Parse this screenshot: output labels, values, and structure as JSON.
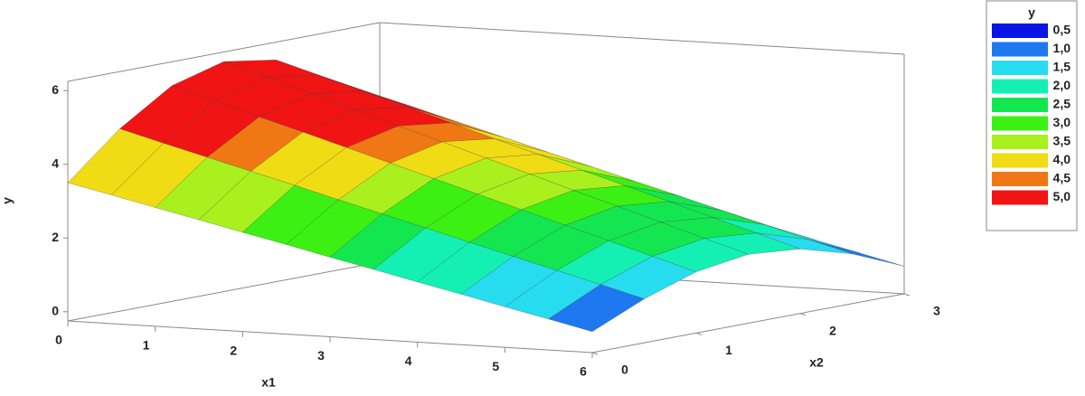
{
  "chart_data": {
    "type": "surface",
    "x_label": "x1",
    "x2_label": "x2",
    "y_label": "y",
    "x1": [
      0,
      0.5,
      1,
      1.5,
      2,
      2.5,
      3,
      3.5,
      4,
      4.5,
      5,
      5.5,
      6
    ],
    "x2": [
      0,
      0.5,
      1,
      1.5,
      2,
      2.5,
      3
    ],
    "z": [
      [
        3.5,
        4.7,
        5.6,
        5.99,
        5.77,
        5.0,
        3.85
      ],
      [
        3.24,
        4.38,
        5.25,
        5.63,
        5.42,
        4.67,
        3.57
      ],
      [
        2.97,
        4.07,
        4.9,
        5.26,
        5.06,
        4.35,
        3.29
      ],
      [
        2.71,
        3.76,
        4.56,
        4.9,
        4.71,
        4.02,
        3.02
      ],
      [
        2.44,
        3.45,
        4.21,
        4.53,
        4.35,
        3.7,
        2.74
      ],
      [
        2.18,
        3.13,
        3.86,
        4.17,
        3.99,
        3.37,
        2.46
      ],
      [
        1.91,
        2.82,
        3.51,
        3.8,
        3.64,
        3.05,
        2.18
      ],
      [
        1.65,
        2.51,
        3.16,
        3.44,
        3.28,
        2.72,
        1.9
      ],
      [
        1.38,
        2.19,
        2.81,
        3.07,
        2.93,
        2.4,
        1.62
      ],
      [
        1.12,
        1.88,
        2.46,
        2.71,
        2.57,
        2.07,
        1.34
      ],
      [
        0.85,
        1.57,
        2.11,
        2.35,
        2.21,
        1.75,
        1.06
      ],
      [
        0.59,
        1.26,
        1.76,
        1.98,
        1.86,
        1.42,
        0.78
      ],
      [
        0.32,
        0.94,
        1.41,
        1.62,
        1.5,
        1.1,
        0.5
      ]
    ],
    "xlim": [
      0,
      6
    ],
    "xticks": [
      0,
      1,
      2,
      3,
      4,
      5,
      6
    ],
    "x2lim": [
      0,
      3
    ],
    "x2ticks": [
      0,
      1,
      2,
      3
    ],
    "ylim": [
      -0.25,
      6.25
    ],
    "yticks": [
      0,
      2,
      4,
      6
    ],
    "legend": {
      "title": "y",
      "position": "right",
      "levels": [
        {
          "value": 0.5,
          "label": "0,5"
        },
        {
          "value": 1.0,
          "label": "1,0"
        },
        {
          "value": 1.5,
          "label": "1,5"
        },
        {
          "value": 2.0,
          "label": "2,0"
        },
        {
          "value": 2.5,
          "label": "2,5"
        },
        {
          "value": 3.0,
          "label": "3,0"
        },
        {
          "value": 3.5,
          "label": "3,5"
        },
        {
          "value": 4.0,
          "label": "4,0"
        },
        {
          "value": 4.5,
          "label": "4,5"
        },
        {
          "value": 5.0,
          "label": "5,0"
        }
      ],
      "colors": [
        "#0a14e6",
        "#1e78f0",
        "#28dcf0",
        "#14f0b4",
        "#14e650",
        "#3cf014",
        "#aaf01e",
        "#f0dc14",
        "#f07814",
        "#f01414"
      ]
    }
  }
}
